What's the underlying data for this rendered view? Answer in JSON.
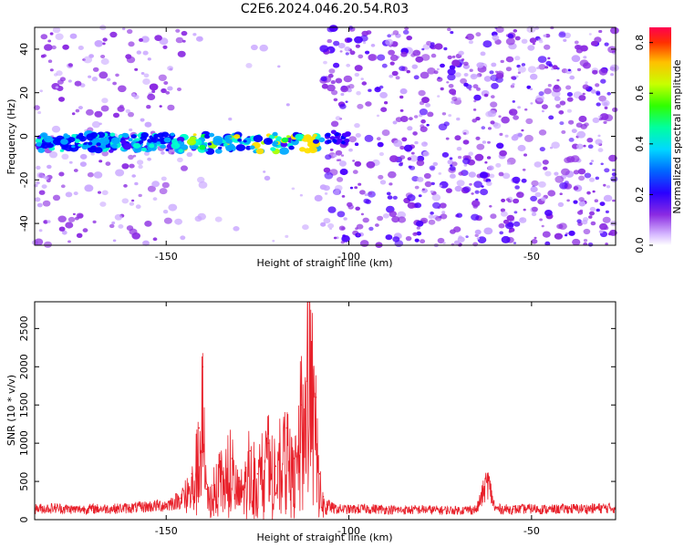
{
  "figure_title": "C2E6.2024.046.20.54.R03",
  "colors": {
    "snr_line": "#e8202a",
    "cmap": [
      "#ffffff",
      "#c9a6ff",
      "#8b2be2",
      "#4a00ff",
      "#0000ff",
      "#00aaff",
      "#00ffd0",
      "#00ff40",
      "#a8ff00",
      "#ffe000",
      "#ff7a00",
      "#ff0040"
    ]
  },
  "chart_data": [
    {
      "type": "heatmap",
      "title": "",
      "xlabel": "Height of straight line (km)",
      "ylabel": "Frequency (Hz)",
      "xlim": [
        -186,
        -27
      ],
      "ylim": [
        -50,
        50
      ],
      "xticks": [
        -150,
        -100,
        -50
      ],
      "yticks": [
        -40,
        -20,
        0,
        20,
        40
      ],
      "colorbar": {
        "label": "Normalized spectral amplitude",
        "range": [
          0.0,
          0.86
        ],
        "ticks": [
          "0.0",
          "0.2",
          "0.4",
          "0.6",
          "0.8"
        ]
      },
      "features": {
        "strong_band_center_hz": -3,
        "strong_band_x_range": [
          -185,
          -107
        ],
        "blank_region_x_range": [
          -145,
          -107
        ],
        "noise_region_x_range": [
          -107,
          -27
        ]
      }
    },
    {
      "type": "line",
      "title": "",
      "xlabel": "Height of straight line (km)",
      "ylabel": "SNR (10 * v/v)",
      "xlim": [
        -186,
        -27
      ],
      "ylim": [
        0,
        2850
      ],
      "xticks": [
        -150,
        -100,
        -50
      ],
      "yticks": [
        0,
        500,
        1000,
        1500,
        2000,
        2500
      ],
      "series": [
        {
          "x": [
            -186,
            -180,
            -175,
            -170,
            -165,
            -160,
            -155,
            -150,
            -146,
            -143,
            -141,
            -140,
            -139,
            -137,
            -135,
            -132,
            -130,
            -127,
            -125,
            -122,
            -120,
            -117,
            -115,
            -113,
            -111,
            -110,
            -109,
            -108,
            -107,
            -106,
            -104,
            -100,
            -95,
            -90,
            -85,
            -80,
            -75,
            -70,
            -65,
            -62,
            -60,
            -55,
            -50,
            -45,
            -40,
            -35,
            -30,
            -27
          ],
          "y": [
            150,
            160,
            140,
            150,
            150,
            160,
            180,
            200,
            280,
            600,
            1200,
            2000,
            400,
            450,
            700,
            800,
            500,
            900,
            600,
            1000,
            700,
            1200,
            800,
            1500,
            2850,
            2000,
            1600,
            600,
            300,
            200,
            150,
            140,
            150,
            140,
            130,
            140,
            130,
            130,
            140,
            530,
            150,
            140,
            150,
            140,
            150,
            150,
            160,
            160
          ]
        }
      ]
    }
  ]
}
